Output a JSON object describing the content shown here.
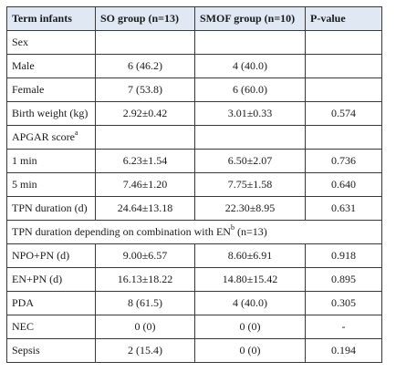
{
  "header": [
    "Term infants",
    "SO group (n=13)",
    "SMOF group (n=10)",
    "P-value"
  ],
  "rows": [
    {
      "label": "Sex",
      "so": "",
      "smof": "",
      "p": ""
    },
    {
      "label": "Male",
      "so": "6 (46.2)",
      "smof": "4 (40.0)",
      "p": ""
    },
    {
      "label": "Female",
      "so": "7 (53.8)",
      "smof": "6 (60.0)",
      "p": ""
    },
    {
      "label": "Birth weight (kg)",
      "so": "2.92±0.42",
      "smof": "3.01±0.33",
      "p": "0.574"
    },
    {
      "label": "APGAR score",
      "sup": "a",
      "so": "",
      "smof": "",
      "p": ""
    },
    {
      "label": "1 min",
      "so": "6.23±1.54",
      "smof": "6.50±2.07",
      "p": "0.736"
    },
    {
      "label": "5 min",
      "so": "7.46±1.20",
      "smof": "7.75±1.58",
      "p": "0.640"
    },
    {
      "label": "TPN duration (d)",
      "so": "24.64±13.18",
      "smof": "22.30±8.95",
      "p": "0.631"
    }
  ],
  "span_row": {
    "text": "TPN duration depending on combination with EN",
    "sup": "b",
    "tail": " (n=13)"
  },
  "rows2": [
    {
      "label": "NPO+PN (d)",
      "so": "9.00±6.57",
      "smof": "8.60±6.91",
      "p": "0.918"
    },
    {
      "label": "EN+PN (d)",
      "so": "16.13±18.22",
      "smof": "14.80±15.42",
      "p": "0.895"
    },
    {
      "label": "PDA",
      "so": "8 (61.5)",
      "smof": "4 (40.0)",
      "p": "0.305"
    },
    {
      "label": "NEC",
      "so": "0 (0)",
      "smof": "0 (0)",
      "p": "-"
    },
    {
      "label": "Sepsis",
      "so": "2 (15.4)",
      "smof": "0 (0)",
      "p": "0.194"
    }
  ]
}
